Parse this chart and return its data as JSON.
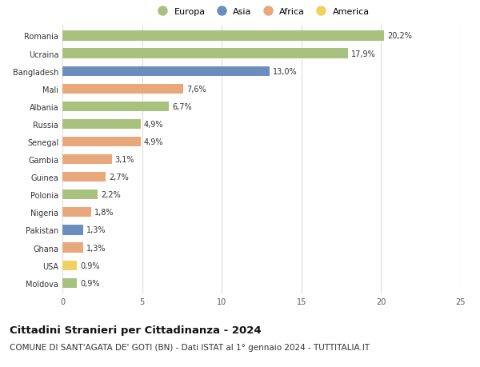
{
  "countries": [
    "Romania",
    "Ucraina",
    "Bangladesh",
    "Mali",
    "Albania",
    "Russia",
    "Senegal",
    "Gambia",
    "Guinea",
    "Polonia",
    "Nigeria",
    "Pakistan",
    "Ghana",
    "USA",
    "Moldova"
  ],
  "values": [
    20.2,
    17.9,
    13.0,
    7.6,
    6.7,
    4.9,
    4.9,
    3.1,
    2.7,
    2.2,
    1.8,
    1.3,
    1.3,
    0.9,
    0.9
  ],
  "labels": [
    "20,2%",
    "17,9%",
    "13,0%",
    "7,6%",
    "6,7%",
    "4,9%",
    "4,9%",
    "3,1%",
    "2,7%",
    "2,2%",
    "1,8%",
    "1,3%",
    "1,3%",
    "0,9%",
    "0,9%"
  ],
  "categories": [
    "Europa",
    "Europa",
    "Asia",
    "Africa",
    "Europa",
    "Europa",
    "Africa",
    "Africa",
    "Africa",
    "Europa",
    "Africa",
    "Asia",
    "Africa",
    "America",
    "Europa"
  ],
  "colors": {
    "Europa": "#a8c17c",
    "Asia": "#6b8ebf",
    "Africa": "#e8a87c",
    "America": "#f0d060"
  },
  "xlim": [
    0,
    25
  ],
  "xticks": [
    0,
    5,
    10,
    15,
    20,
    25
  ],
  "title": "Cittadini Stranieri per Cittadinanza - 2024",
  "subtitle": "COMUNE DI SANT'AGATA DE' GOTI (BN) - Dati ISTAT al 1° gennaio 2024 - TUTTITALIA.IT",
  "bg_color": "#ffffff",
  "grid_color": "#dddddd",
  "bar_height": 0.55,
  "title_fontsize": 9.5,
  "subtitle_fontsize": 7.5,
  "label_fontsize": 7,
  "tick_fontsize": 7,
  "legend_fontsize": 8,
  "legend_order": [
    "Europa",
    "Asia",
    "Africa",
    "America"
  ]
}
